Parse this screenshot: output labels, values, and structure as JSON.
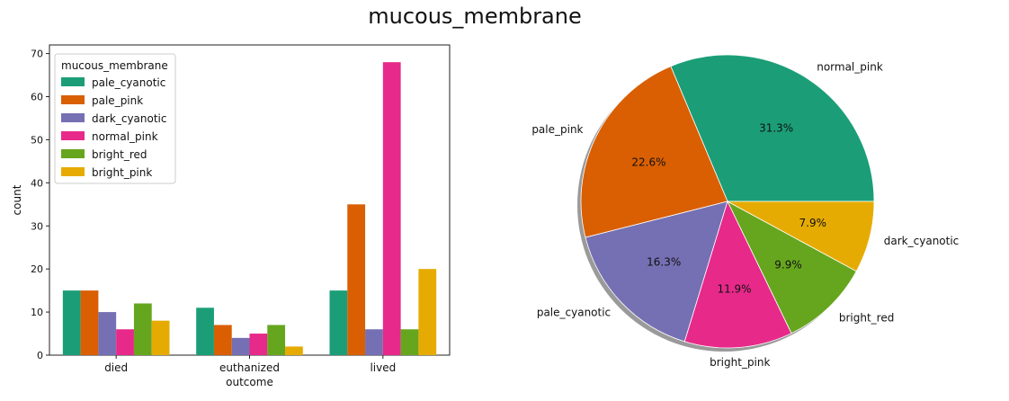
{
  "figure": {
    "title": "mucous_membrane"
  },
  "colors": {
    "pale_cyanotic": "#1b9e77",
    "pale_pink": "#d95f02",
    "dark_cyanotic": "#7570b3",
    "normal_pink": "#e7298a",
    "bright_red": "#66a61e",
    "bright_pink": "#e6ab02"
  },
  "chart_data": [
    {
      "type": "bar",
      "xlabel": "outcome",
      "ylabel": "count",
      "ylim": [
        0,
        72
      ],
      "yticks": [
        0,
        10,
        20,
        30,
        40,
        50,
        60,
        70
      ],
      "categories": [
        "died",
        "euthanized",
        "lived"
      ],
      "legend": {
        "title": "mucous_membrane",
        "placement": "upper-left"
      },
      "series": [
        {
          "name": "pale_cyanotic",
          "values": [
            15,
            11,
            15
          ]
        },
        {
          "name": "pale_pink",
          "values": [
            15,
            7,
            35
          ]
        },
        {
          "name": "dark_cyanotic",
          "values": [
            10,
            4,
            6
          ]
        },
        {
          "name": "normal_pink",
          "values": [
            6,
            5,
            68
          ]
        },
        {
          "name": "bright_red",
          "values": [
            12,
            7,
            6
          ]
        },
        {
          "name": "bright_pink",
          "values": [
            8,
            2,
            20
          ]
        }
      ]
    },
    {
      "type": "pie",
      "slices": [
        {
          "label": "normal_pink",
          "value": 31.3,
          "pct_label": "31.3%",
          "color": "#1b9e77"
        },
        {
          "label": "pale_pink",
          "value": 22.6,
          "pct_label": "22.6%",
          "color": "#d95f02"
        },
        {
          "label": "pale_cyanotic",
          "value": 16.3,
          "pct_label": "16.3%",
          "color": "#7570b3"
        },
        {
          "label": "bright_pink",
          "value": 11.9,
          "pct_label": "11.9%",
          "color": "#e7298a"
        },
        {
          "label": "bright_red",
          "value": 9.9,
          "pct_label": "9.9%",
          "color": "#66a61e"
        },
        {
          "label": "dark_cyanotic",
          "value": 7.9,
          "pct_label": "7.9%",
          "color": "#e6ab02"
        }
      ]
    }
  ]
}
